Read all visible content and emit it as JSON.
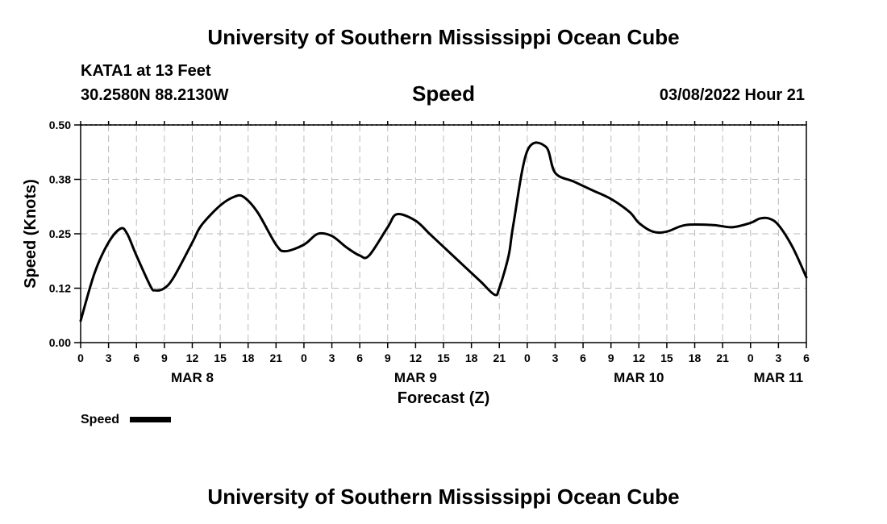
{
  "page": {
    "title": "University of Southern Mississippi Ocean Cube",
    "footer_title": "University of Southern Mississippi Ocean Cube",
    "station": "KATA1 at 13 Feet",
    "coordinates": "30.2580N  88.2130W",
    "metric": "Speed",
    "datetime": "03/08/2022 Hour 21"
  },
  "chart_data": {
    "type": "line",
    "title": "Speed",
    "xlabel": "Forecast (Z)",
    "ylabel": "Speed (Knots)",
    "ylim": [
      0,
      0.5
    ],
    "xlim": [
      0,
      78
    ],
    "x_unit": "hours since MAR 8 00Z",
    "grid": true,
    "yticks": [
      {
        "value": 0.0,
        "label": "0.00"
      },
      {
        "value": 0.125,
        "label": "0.12"
      },
      {
        "value": 0.25,
        "label": "0.25"
      },
      {
        "value": 0.375,
        "label": "0.38"
      },
      {
        "value": 0.5,
        "label": "0.50"
      }
    ],
    "xticks": [
      {
        "hour": 0,
        "label": "0"
      },
      {
        "hour": 3,
        "label": "3"
      },
      {
        "hour": 6,
        "label": "6"
      },
      {
        "hour": 9,
        "label": "9"
      },
      {
        "hour": 12,
        "label": "12"
      },
      {
        "hour": 15,
        "label": "15"
      },
      {
        "hour": 18,
        "label": "18"
      },
      {
        "hour": 21,
        "label": "21"
      },
      {
        "hour": 24,
        "label": "0"
      },
      {
        "hour": 27,
        "label": "3"
      },
      {
        "hour": 30,
        "label": "6"
      },
      {
        "hour": 33,
        "label": "9"
      },
      {
        "hour": 36,
        "label": "12"
      },
      {
        "hour": 39,
        "label": "15"
      },
      {
        "hour": 42,
        "label": "18"
      },
      {
        "hour": 45,
        "label": "21"
      },
      {
        "hour": 48,
        "label": "0"
      },
      {
        "hour": 51,
        "label": "3"
      },
      {
        "hour": 54,
        "label": "6"
      },
      {
        "hour": 57,
        "label": "9"
      },
      {
        "hour": 60,
        "label": "12"
      },
      {
        "hour": 63,
        "label": "15"
      },
      {
        "hour": 66,
        "label": "18"
      },
      {
        "hour": 69,
        "label": "21"
      },
      {
        "hour": 72,
        "label": "0"
      },
      {
        "hour": 75,
        "label": "3"
      },
      {
        "hour": 78,
        "label": "6"
      }
    ],
    "day_labels": [
      {
        "hour": 12,
        "label": "MAR 8"
      },
      {
        "hour": 36,
        "label": "MAR 9"
      },
      {
        "hour": 60,
        "label": "MAR 10"
      },
      {
        "hour": 75,
        "label": "MAR 11"
      }
    ],
    "legend": {
      "label": "Speed",
      "position": "bottom-left"
    },
    "series": [
      {
        "name": "Speed",
        "color": "#000000",
        "x": [
          0,
          1.5,
          3,
          4.3,
          5,
          6,
          7.5,
          8,
          9,
          10,
          12,
          13,
          15,
          16.5,
          17.5,
          19,
          21,
          22,
          24,
          25.5,
          27,
          28.5,
          30,
          31,
          33,
          34,
          36,
          37.5,
          39,
          41,
          43,
          44.5,
          45,
          46,
          46.5,
          48,
          50,
          51,
          53,
          55,
          57,
          59,
          60,
          61.5,
          63,
          65,
          68,
          70,
          72,
          73,
          74,
          75,
          76.5,
          78
        ],
        "values": [
          0.05,
          0.16,
          0.23,
          0.262,
          0.25,
          0.2,
          0.13,
          0.12,
          0.125,
          0.15,
          0.23,
          0.27,
          0.315,
          0.335,
          0.335,
          0.3,
          0.225,
          0.21,
          0.225,
          0.25,
          0.245,
          0.22,
          0.2,
          0.2,
          0.265,
          0.295,
          0.28,
          0.25,
          0.22,
          0.18,
          0.14,
          0.11,
          0.125,
          0.2,
          0.27,
          0.44,
          0.45,
          0.39,
          0.37,
          0.35,
          0.33,
          0.3,
          0.275,
          0.255,
          0.255,
          0.27,
          0.27,
          0.265,
          0.275,
          0.285,
          0.285,
          0.27,
          0.22,
          0.15
        ]
      }
    ]
  }
}
